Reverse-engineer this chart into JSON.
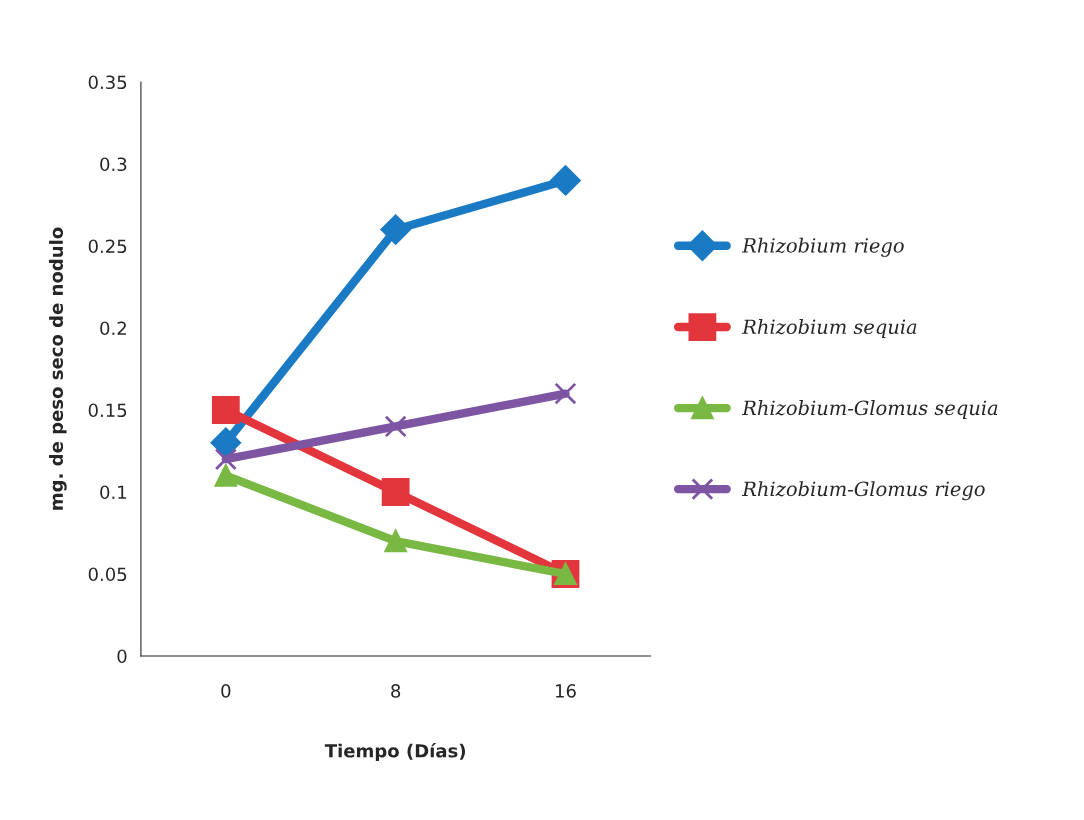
{
  "chart_data": {
    "type": "line",
    "xlabel": "Tiempo (Días)",
    "ylabel": "mg. de peso seco de nodulo",
    "categories": [
      "0",
      "8",
      "16"
    ],
    "series": [
      {
        "name": "Rhizobium riego",
        "color": "#1a7bc4",
        "marker": "diamond",
        "values": [
          0.13,
          0.26,
          0.29
        ]
      },
      {
        "name": "Rhizobium sequia",
        "color": "#e2363c",
        "marker": "square",
        "values": [
          0.15,
          0.1,
          0.05
        ]
      },
      {
        "name": "Rhizobium-Glomus sequia",
        "color": "#78b843",
        "marker": "triangle",
        "values": [
          0.11,
          0.07,
          0.05
        ]
      },
      {
        "name": "Rhizobium-Glomus riego",
        "color": "#7d55a3",
        "marker": "cross",
        "values": [
          0.12,
          0.14,
          0.16
        ]
      }
    ],
    "ylim": [
      0,
      0.35
    ],
    "yticks": [
      0,
      0.05,
      0.1,
      0.15,
      0.2,
      0.25,
      0.3,
      0.35
    ],
    "grid": false,
    "legend": "right",
    "line_style": "solid"
  }
}
